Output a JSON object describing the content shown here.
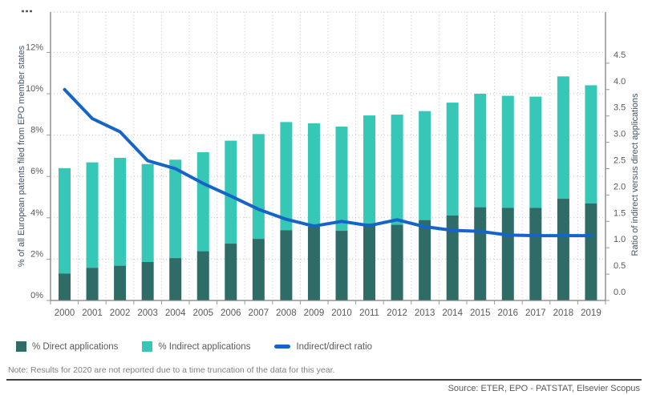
{
  "figure": {
    "left_axis_title": "% of all European patents filed from EPO member states",
    "right_axis_title": "Ratio of indirect versus direct applications",
    "note": "Note: Results for 2020 are not reported due to a time truncation of the data for this year.",
    "source": "Source: ETER, EPO - PATSTAT, Elsevier Scopus"
  },
  "legend": [
    {
      "label": "% Direct applications",
      "color": "#2F6C68",
      "swatch": "square"
    },
    {
      "label": "% Indirect applications",
      "color": "#36C7B6",
      "swatch": "square"
    },
    {
      "label": "Indirect/direct ratio",
      "color": "#1565C8",
      "swatch": "line"
    }
  ],
  "colors": {
    "direct_bar": "#2F6C68",
    "indirect_bar": "#36C7B6",
    "ratio_line": "#1565C8",
    "grid": "#c6c6c6",
    "axis_line": "#7f7f7f",
    "tick_text": "#595959",
    "axis_title_text": "#44546A"
  },
  "chart_data": {
    "type": "bar",
    "subtype": "stacked-bars-with-line",
    "categories": [
      "2000",
      "2001",
      "2002",
      "2003",
      "2004",
      "2005",
      "2006",
      "2007",
      "2008",
      "2009",
      "2010",
      "2011",
      "2012",
      "2013",
      "2014",
      "2015",
      "2016",
      "2017",
      "2018",
      "2019"
    ],
    "series": [
      {
        "name": "% Direct applications",
        "type": "bar",
        "axis": "left",
        "color": "#2F6C68",
        "values": [
          1.3,
          1.58,
          1.68,
          1.86,
          2.05,
          2.38,
          2.75,
          2.98,
          3.4,
          3.57,
          3.37,
          3.72,
          3.66,
          3.89,
          4.11,
          4.51,
          4.48,
          4.48,
          4.92,
          4.69
        ]
      },
      {
        "name": "% Indirect applications",
        "type": "bar",
        "axis": "left",
        "color": "#36C7B6",
        "values": [
          5.1,
          5.1,
          5.22,
          4.74,
          4.76,
          4.79,
          4.98,
          5.07,
          5.23,
          5.0,
          5.04,
          5.23,
          5.33,
          5.27,
          5.46,
          5.49,
          5.42,
          5.38,
          5.92,
          5.72
        ]
      },
      {
        "name": "Indirect/direct ratio",
        "type": "line",
        "axis": "right",
        "color": "#1565C8",
        "values": [
          4.0,
          3.45,
          3.2,
          2.65,
          2.5,
          2.22,
          1.98,
          1.73,
          1.54,
          1.41,
          1.5,
          1.42,
          1.53,
          1.4,
          1.33,
          1.31,
          1.24,
          1.23,
          1.23,
          1.23
        ]
      }
    ],
    "left_axis": {
      "label": "% of all European patents filed from EPO member states",
      "tick_values": [
        0,
        2,
        4,
        6,
        8,
        10,
        12
      ],
      "tick_labels": [
        "0%",
        "2%",
        "4%",
        "6%",
        "8%",
        "10%",
        "12%"
      ],
      "min": 0,
      "max": 12.8,
      "grid": true
    },
    "right_axis": {
      "label": "Ratio of indirect versus direct applications",
      "tick_values": [
        0.0,
        0.5,
        1.0,
        1.5,
        2.0,
        2.5,
        3.0,
        3.5,
        4.0,
        4.5
      ],
      "tick_labels": [
        "0.0",
        "0.5",
        "1.0",
        "1.5",
        "2.0",
        "2.5",
        "3.0",
        "3.5",
        "4.0",
        "4.5"
      ],
      "min": 0,
      "max": 4.85,
      "grid": false
    },
    "legend_position": "bottom-left"
  }
}
